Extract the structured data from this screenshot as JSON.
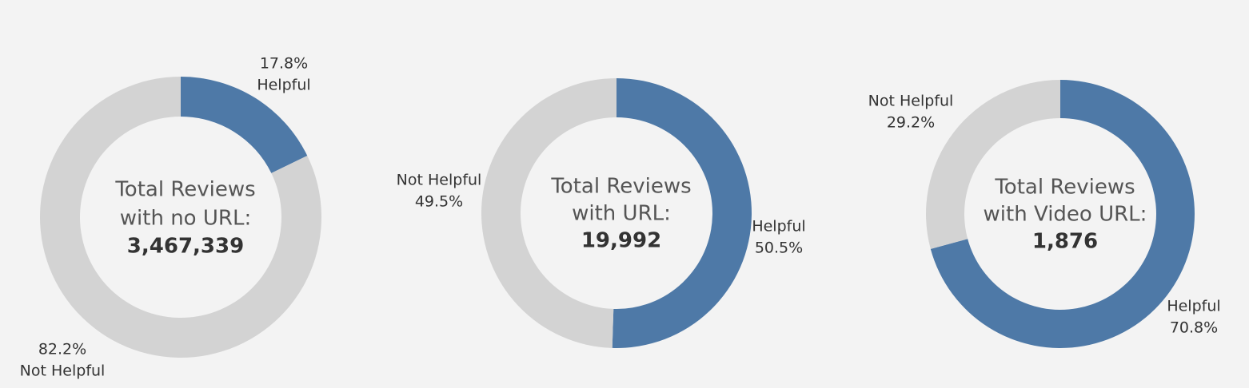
{
  "colors": {
    "helpful": "#4e79a7",
    "not_helpful": "#d3d3d3",
    "background": "#f3f3f3"
  },
  "chart_data": [
    {
      "type": "pie",
      "title_lines": [
        "Total Reviews",
        "with no URL:"
      ],
      "total": "3,467,339",
      "slices": [
        {
          "name": "Helpful",
          "value": 17.8,
          "label": "17.8%"
        },
        {
          "name": "Not Helpful",
          "value": 82.2,
          "label": "82.2%"
        }
      ]
    },
    {
      "type": "pie",
      "title_lines": [
        "Total Reviews",
        "with URL:"
      ],
      "total": "19,992",
      "slices": [
        {
          "name": "Helpful",
          "value": 50.5,
          "label": "50.5%"
        },
        {
          "name": "Not Helpful",
          "value": 49.5,
          "label": "49.5%"
        }
      ]
    },
    {
      "type": "pie",
      "title_lines": [
        "Total Reviews",
        "with Video URL:"
      ],
      "total": "1,876",
      "slices": [
        {
          "name": "Helpful",
          "value": 70.8,
          "label": "70.8%"
        },
        {
          "name": "Not Helpful",
          "value": 29.2,
          "label": "29.2%"
        }
      ]
    }
  ]
}
